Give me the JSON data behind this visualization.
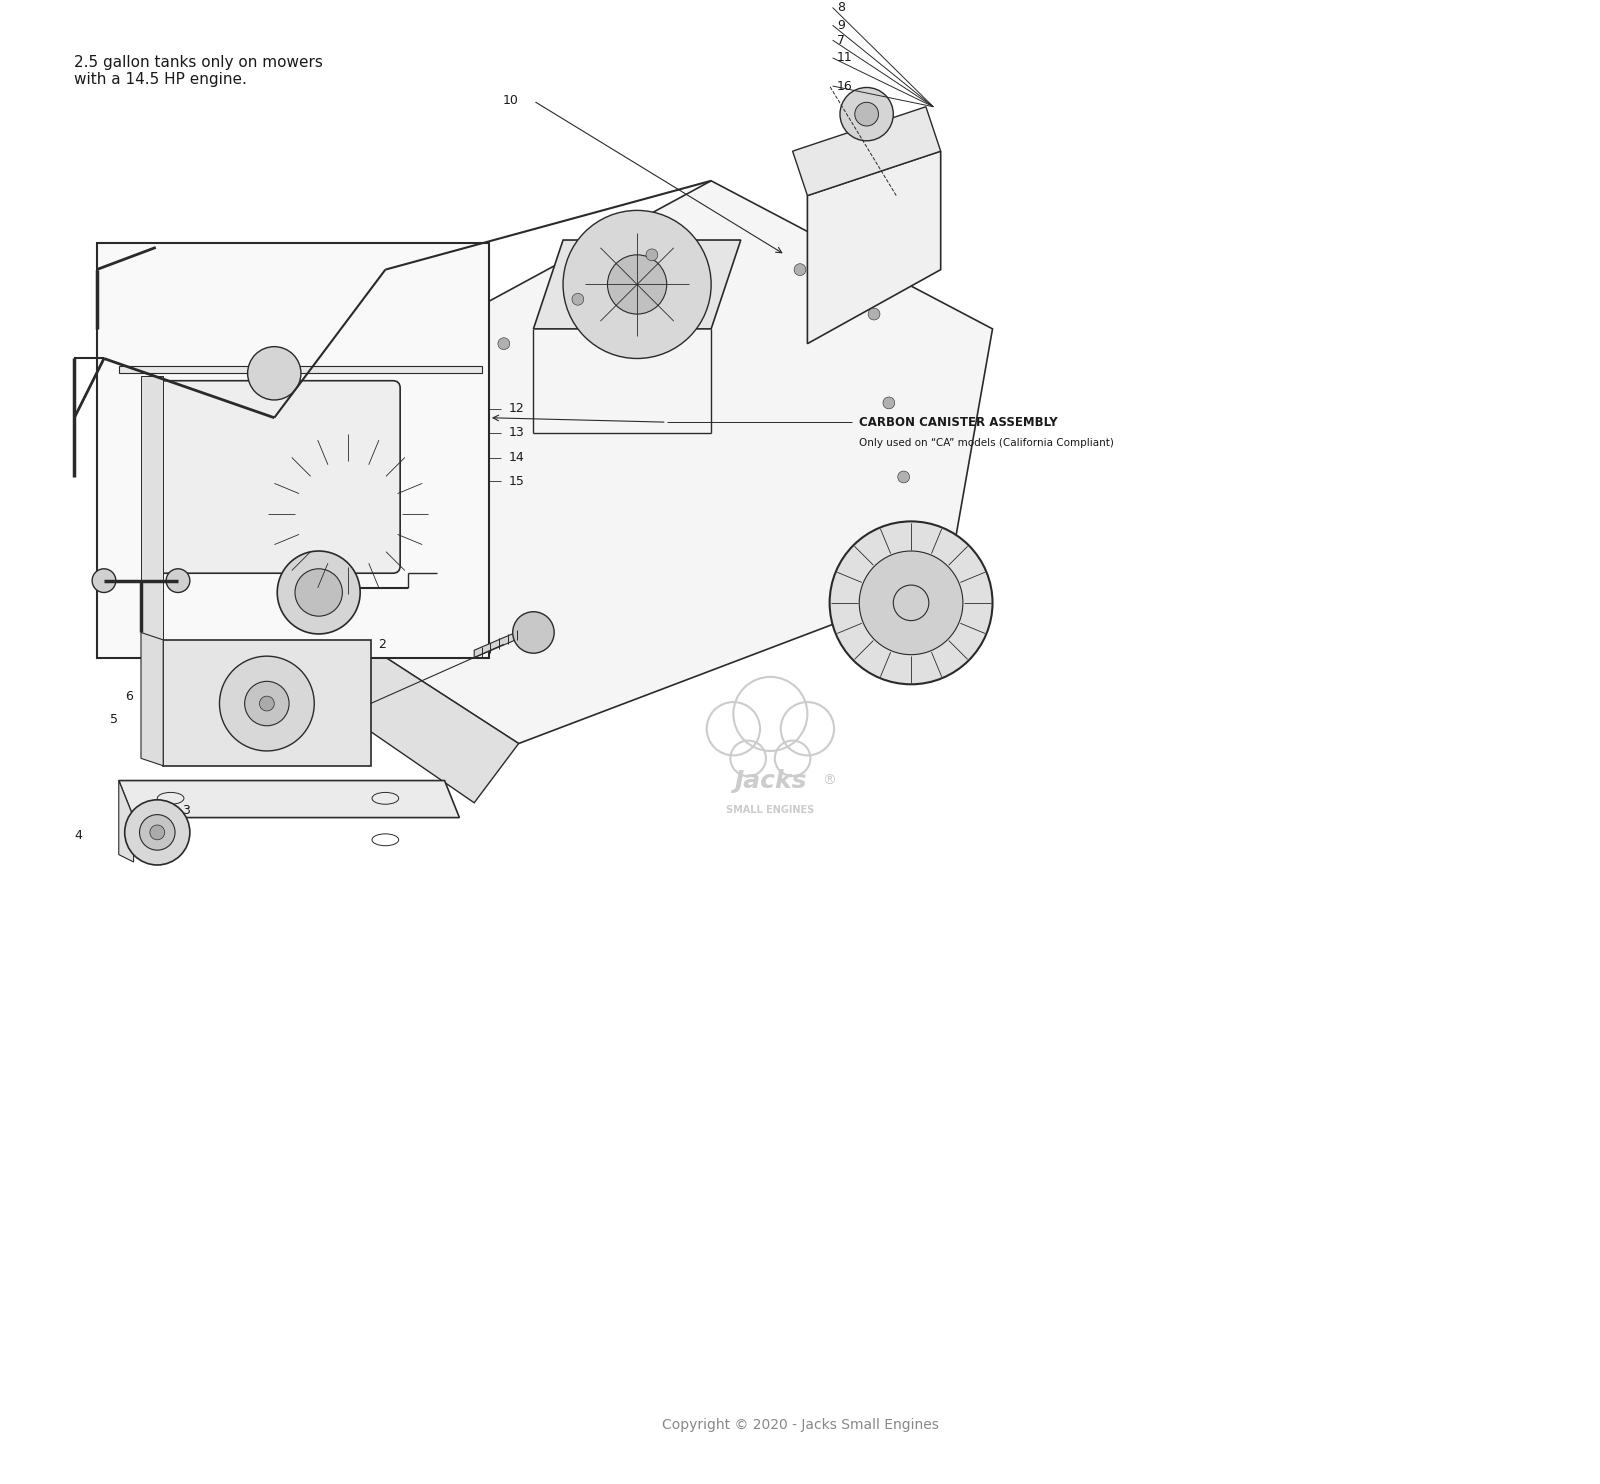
{
  "bg_color": "#ffffff",
  "fig_width": 16.0,
  "fig_height": 14.84,
  "note_text": "2.5 gallon tanks only on mowers\nwith a 14.5 HP engine.",
  "carbon_canister_label": "CARBON CANISTER ASSEMBLY",
  "carbon_canister_sub": "Only used on “CA” models (California Compliant)",
  "copyright_text": "Copyright © 2020 - Jacks Small Engines",
  "line_color": "#2a2a2a",
  "text_color": "#1a1a1a",
  "logo_color": "#cccccc"
}
